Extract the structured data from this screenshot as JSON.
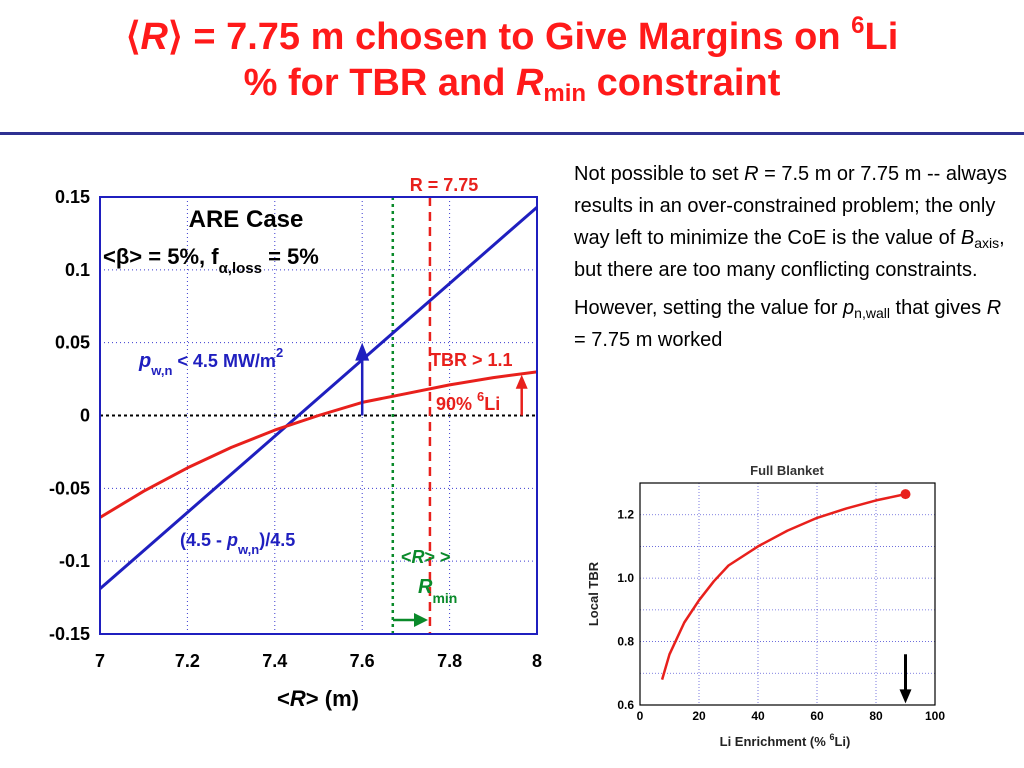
{
  "title": {
    "open_bracket": "⟨",
    "R": "R",
    "close_bracket": "⟩",
    "text1": " = 7.75 m chosen to Give Margins on ",
    "sup6": "6",
    "text2": "Li",
    "line2a": "% for TBR and ",
    "R2": "R",
    "sub_min": "min",
    "line2b": " constraint"
  },
  "notes": {
    "p1_a": "Not possible to set ",
    "p1_R": "R",
    "p1_b": " = 7.5 m or 7.75 m -- always results in an over-constrained problem; the only way left to minimize the CoE is the value of ",
    "p1_B": "B",
    "p1_axis": "axis",
    "p1_c": ", but there are too many conflicting constraints.",
    "p2_a": "However, setting the value for ",
    "p2_p": "p",
    "p2_sub": "n,wall",
    "p2_b": " that gives ",
    "p2_R": "R",
    "p2_c": " = 7.75 m worked"
  },
  "colors": {
    "red": "#e8201c",
    "blue": "#1f1fbf",
    "green": "#0a8a2a",
    "title_red": "#ff1a1a",
    "rule": "#2e3192"
  },
  "chart_data": [
    {
      "type": "line",
      "xlabel": {
        "lt": "<",
        "R": "R",
        "gt": ">",
        "unit": " (m)"
      },
      "xlim": [
        7,
        8
      ],
      "ylim": [
        -0.15,
        0.15
      ],
      "xticks": [
        "7",
        "7.2",
        "7.4",
        "7.6",
        "7.8",
        "8"
      ],
      "yticks": [
        "0.15",
        "0.1",
        "0.05",
        "0",
        "-0.05",
        "-0.1",
        "-0.15"
      ],
      "grid": true,
      "series": [
        {
          "key": "blue",
          "color": "#1f1fbf",
          "x": [
            7.0,
            8.0
          ],
          "y": [
            -0.119,
            0.143
          ]
        },
        {
          "key": "red",
          "color": "#e8201c",
          "x": [
            7.0,
            7.1,
            7.2,
            7.3,
            7.4,
            7.5,
            7.6,
            7.7,
            7.8,
            7.9,
            8.0
          ],
          "y": [
            -0.07,
            -0.052,
            -0.036,
            -0.022,
            -0.01,
            0.0,
            0.009,
            0.015,
            0.021,
            0.026,
            0.03
          ]
        }
      ],
      "vlines": [
        {
          "x": 7.67,
          "color": "#0a8a2a",
          "style": "dotted"
        },
        {
          "x": 7.755,
          "color": "#e8201c",
          "style": "dashed"
        }
      ],
      "hline": {
        "y": 0,
        "style": "dotted"
      },
      "arrows": [
        {
          "key": "blue",
          "x": 7.6,
          "y0": 0.0,
          "y1": 0.05
        },
        {
          "key": "red",
          "x": 7.965,
          "y0": 0.0,
          "y1": 0.028
        }
      ],
      "labels": {
        "r_line": "R = 7.75",
        "case_title": "ARE Case",
        "case_sub_a": "<",
        "beta": "β",
        "case_sub_b": "> = 5%, f",
        "alpha_loss": "α,loss",
        "case_sub_c": " = 5%",
        "pwn_p": "p",
        "pwn_sub": "w,n",
        "pwn_text": " < 4.5 MW/m",
        "pwn_sup": "2",
        "tbr": "TBR > 1.1",
        "li_pct": "90% ",
        "li_sup": "6",
        "li_txt": "Li",
        "blue_eq_a": "(4.5 - ",
        "blue_eq_p": "p",
        "blue_eq_sub": "w,n",
        "blue_eq_b": ")/4.5",
        "rmin_a": "<",
        "rmin_R": "R",
        "rmin_b": ">  >",
        "rmin_R2": "R",
        "rmin_sub": "min"
      }
    },
    {
      "type": "line",
      "title": "Full Blanket",
      "xlabel": {
        "a": "Li Enrichment (% ",
        "sup": "6",
        "b": "Li)"
      },
      "ylabel": "Local TBR",
      "xlim": [
        0,
        100
      ],
      "ylim": [
        0.6,
        1.3
      ],
      "xticks": [
        "0",
        "20",
        "40",
        "60",
        "80",
        "100"
      ],
      "yticks": [
        "0.6",
        "0.8",
        "1.0",
        "1.2"
      ],
      "grid": true,
      "series": [
        {
          "name": "",
          "color": "#e8201c",
          "x": [
            7.5,
            10,
            15,
            20,
            25,
            30,
            40,
            50,
            60,
            70,
            80,
            90
          ],
          "y": [
            0.68,
            0.76,
            0.86,
            0.93,
            0.99,
            1.04,
            1.1,
            1.15,
            1.19,
            1.22,
            1.245,
            1.265
          ]
        }
      ],
      "end_marker": {
        "x": 90,
        "y": 1.265
      },
      "arrow": {
        "x": 90,
        "y_top": 0.76,
        "y_bottom": 0.605
      }
    }
  ]
}
